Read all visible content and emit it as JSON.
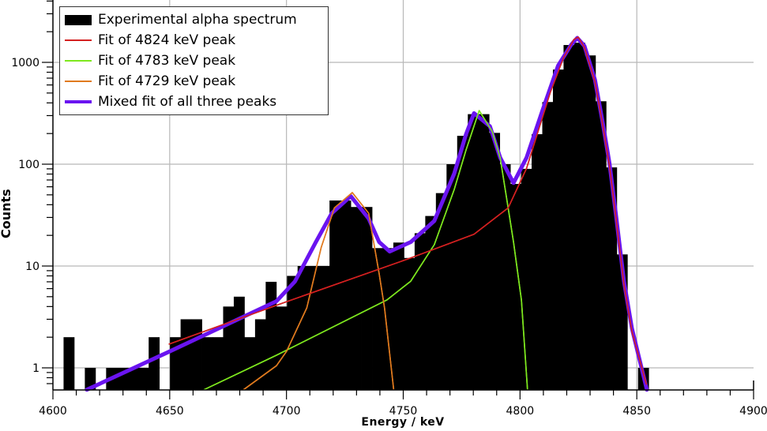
{
  "chart_data": {
    "type": "bar",
    "title": "",
    "xlabel": "Energy / keV",
    "ylabel": "Counts",
    "xlim": [
      4600,
      4900
    ],
    "ylim": [
      0.6,
      4170
    ],
    "yscale": "log",
    "grid": true,
    "legend_position": "upper left",
    "xticks": [
      4600,
      4650,
      4700,
      4750,
      4800,
      4850,
      4900
    ],
    "yticks": [
      1,
      10,
      100,
      1000
    ],
    "histogram": {
      "name": "Experimental alpha spectrum",
      "color": "#000000",
      "bin_start": 4600,
      "bin_width": 4.555,
      "counts": [
        0,
        2,
        0,
        1,
        0,
        1,
        1,
        1,
        1,
        2,
        0,
        2,
        3,
        3,
        2,
        2,
        4,
        5,
        2,
        3,
        7,
        4,
        8,
        10,
        10,
        10,
        44,
        44,
        38,
        38,
        15,
        15,
        17,
        12,
        21,
        31,
        52,
        100,
        190,
        310,
        310,
        203,
        100,
        64,
        90,
        197,
        408,
        850,
        1480,
        1560,
        1170,
        415,
        93,
        13,
        0,
        1,
        0,
        0,
        0,
        0,
        0,
        0,
        0,
        0,
        0,
        0
      ]
    },
    "series": [
      {
        "name": "Fit of 4824 keV peak",
        "color": "#d42020",
        "width": 1.6,
        "points": [
          [
            4649.8,
            1.71
          ],
          [
            4695.7,
            4.12
          ],
          [
            4753.2,
            12.0
          ],
          [
            4780.3,
            20.5
          ],
          [
            4794.9,
            37.2
          ],
          [
            4802.8,
            90.9
          ],
          [
            4808.4,
            236
          ],
          [
            4813.0,
            511
          ],
          [
            4818.6,
            1106
          ],
          [
            4823.1,
            1680
          ],
          [
            4824.9,
            1770
          ],
          [
            4827.6,
            1400
          ],
          [
            4832.1,
            646
          ],
          [
            4835.5,
            236
          ],
          [
            4838.3,
            96.5
          ],
          [
            4841.1,
            29.3
          ],
          [
            4844.5,
            6.62
          ],
          [
            4847.9,
            2.27
          ],
          [
            4854.1,
            0.69
          ]
        ]
      },
      {
        "name": "Fit of 4783 keV peak",
        "color": "#7ee81e",
        "width": 1.6,
        "points": [
          [
            4664.7,
            0.61
          ],
          [
            4695.7,
            1.33
          ],
          [
            4743.0,
            4.64
          ],
          [
            4753.2,
            7.1
          ],
          [
            4763.3,
            16.2
          ],
          [
            4771.8,
            56.4
          ],
          [
            4776.9,
            138
          ],
          [
            4782.5,
            336
          ],
          [
            4788.1,
            210
          ],
          [
            4791.5,
            116
          ],
          [
            4794.9,
            37.2
          ],
          [
            4797.2,
            17.2
          ],
          [
            4800.6,
            4.64
          ],
          [
            4803.2,
            0.61
          ]
        ]
      },
      {
        "name": "Fit of 4729 keV peak",
        "color": "#e07a1e",
        "width": 1.6,
        "points": [
          [
            4681.6,
            0.61
          ],
          [
            4695.7,
            1.05
          ],
          [
            4700.0,
            1.45
          ],
          [
            4708.7,
            3.88
          ],
          [
            4714.9,
            15.3
          ],
          [
            4720.5,
            37.2
          ],
          [
            4728.2,
            52.6
          ],
          [
            4735.2,
            33.0
          ],
          [
            4739.7,
            8.4
          ],
          [
            4742.0,
            3.88
          ],
          [
            4745.9,
            0.61
          ]
        ]
      },
      {
        "name": "Mixed fit of all three peaks",
        "color": "#6a14f0",
        "width": 5,
        "points": [
          [
            4614.5,
            0.61
          ],
          [
            4650.0,
            1.45
          ],
          [
            4695.7,
            4.51
          ],
          [
            4703.6,
            7.04
          ],
          [
            4712.6,
            17.2
          ],
          [
            4719.4,
            33.0
          ],
          [
            4727.5,
            48.5
          ],
          [
            4735.2,
            29.3
          ],
          [
            4739.7,
            17.2
          ],
          [
            4744.2,
            13.9
          ],
          [
            4753.2,
            17.2
          ],
          [
            4763.3,
            27.7
          ],
          [
            4771.8,
            80.7
          ],
          [
            4776.9,
            197
          ],
          [
            4780.3,
            317
          ],
          [
            4787.1,
            236
          ],
          [
            4791.5,
            116
          ],
          [
            4797.2,
            65.4
          ],
          [
            4802.8,
            116
          ],
          [
            4809.6,
            336
          ],
          [
            4816.3,
            927
          ],
          [
            4821.9,
            1490
          ],
          [
            4824.5,
            1740
          ],
          [
            4827.6,
            1450
          ],
          [
            4832.1,
            675
          ],
          [
            4835.5,
            249
          ],
          [
            4838.3,
            102
          ],
          [
            4841.1,
            31.3
          ],
          [
            4844.5,
            7.1
          ],
          [
            4847.9,
            2.44
          ],
          [
            4854.3,
            0.61
          ]
        ]
      }
    ]
  },
  "legend": {
    "items": [
      {
        "label": "Experimental alpha spectrum",
        "kind": "box",
        "color": "#000000"
      },
      {
        "label": "Fit of 4824 keV peak",
        "kind": "line",
        "color": "#d42020"
      },
      {
        "label": "Fit of 4783 keV peak",
        "kind": "line",
        "color": "#7ee81e"
      },
      {
        "label": "Fit of 4729 keV peak",
        "kind": "line",
        "color": "#e07a1e"
      },
      {
        "label": "Mixed fit of all three peaks",
        "kind": "thick",
        "color": "#6a14f0"
      }
    ]
  },
  "axes": {
    "xlabel": "Energy / keV",
    "ylabel": "Counts",
    "xtick_labels": [
      "4600",
      "4650",
      "4700",
      "4750",
      "4800",
      "4850",
      "4900"
    ],
    "ytick_labels": [
      "1",
      "10",
      "100",
      "1000"
    ]
  }
}
